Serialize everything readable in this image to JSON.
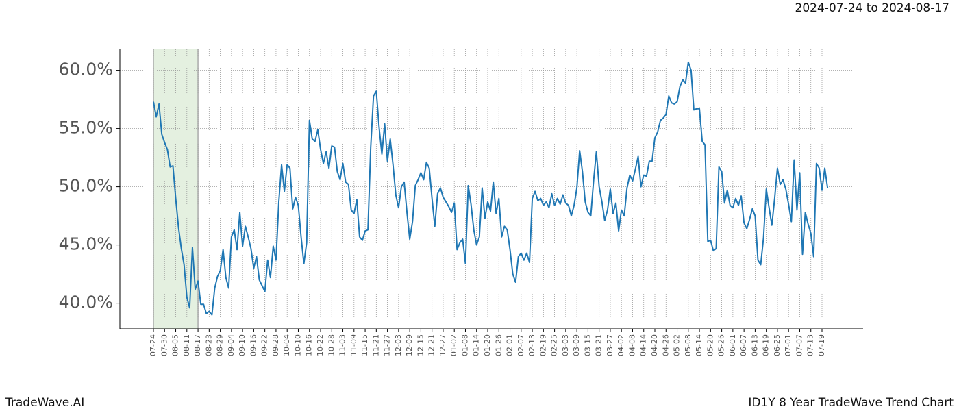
{
  "chart_data": {
    "type": "line",
    "subtitle": "2024-07-24 to 2024-08-17",
    "footer_left": "TradeWave.AI",
    "footer_right": "ID1Y 8 Year TradeWave Trend Chart",
    "color": "#1f77b4",
    "highlight_span": [
      0,
      16
    ],
    "highlight_color": "#d9ead3",
    "grid": true,
    "ylim": [
      37.8,
      61.8
    ],
    "yticks": [
      {
        "value": 40,
        "label": "40.0%"
      },
      {
        "value": 45,
        "label": "45.0%"
      },
      {
        "value": 50,
        "label": "50.0%"
      },
      {
        "value": 55,
        "label": "55.0%"
      },
      {
        "value": 60,
        "label": "60.0%"
      }
    ],
    "categories": [
      "07-24",
      null,
      null,
      null,
      "07-30",
      null,
      null,
      null,
      "08-05",
      null,
      null,
      null,
      "08-11",
      null,
      null,
      null,
      "08-17",
      null,
      null,
      null,
      "08-23",
      null,
      null,
      null,
      "08-29",
      null,
      null,
      null,
      "09-04",
      null,
      null,
      null,
      "09-10",
      null,
      null,
      null,
      "09-16",
      null,
      null,
      null,
      "09-22",
      null,
      null,
      null,
      "09-28",
      null,
      null,
      null,
      "10-04",
      null,
      null,
      null,
      "10-10",
      null,
      null,
      null,
      "10-16",
      null,
      null,
      null,
      "10-22",
      null,
      null,
      null,
      "10-28",
      null,
      null,
      null,
      "11-03",
      null,
      null,
      null,
      "11-09",
      null,
      null,
      null,
      "11-15",
      null,
      null,
      null,
      "11-21",
      null,
      null,
      null,
      "11-27",
      null,
      null,
      null,
      "12-03",
      null,
      null,
      null,
      "12-09",
      null,
      null,
      null,
      "12-15",
      null,
      null,
      null,
      "12-21",
      null,
      null,
      null,
      "12-27",
      null,
      null,
      null,
      "01-02",
      null,
      null,
      null,
      "01-08",
      null,
      null,
      null,
      "01-14",
      null,
      null,
      null,
      "01-20",
      null,
      null,
      null,
      "01-26",
      null,
      null,
      null,
      "02-01",
      null,
      null,
      null,
      "02-07",
      null,
      null,
      null,
      "02-13",
      null,
      null,
      null,
      "02-19",
      null,
      null,
      null,
      "02-25",
      null,
      null,
      null,
      "03-03",
      null,
      null,
      null,
      "03-09",
      null,
      null,
      null,
      "03-15",
      null,
      null,
      null,
      "03-21",
      null,
      null,
      null,
      "03-27",
      null,
      null,
      null,
      "04-02",
      null,
      null,
      null,
      "04-08",
      null,
      null,
      null,
      "04-14",
      null,
      null,
      null,
      "04-20",
      null,
      null,
      null,
      "04-26",
      null,
      null,
      null,
      "05-02",
      null,
      null,
      null,
      "05-08",
      null,
      null,
      null,
      "05-14",
      null,
      null,
      null,
      "05-20",
      null,
      null,
      null,
      "05-26",
      null,
      null,
      null,
      "06-01",
      null,
      null,
      null,
      "06-07",
      null,
      null,
      null,
      "06-13",
      null,
      null,
      null,
      "06-19",
      null,
      null,
      null,
      "06-25",
      null,
      null,
      null,
      "07-01",
      null,
      null,
      null,
      "07-07",
      null,
      null,
      null,
      "07-13",
      null,
      null,
      null,
      "07-19",
      null,
      null
    ],
    "values": [
      57.3,
      56.0,
      57.1,
      54.5,
      53.8,
      53.2,
      51.7,
      51.8,
      49.0,
      46.5,
      44.7,
      43.3,
      40.5,
      39.6,
      44.8,
      41.2,
      41.9,
      39.9,
      39.9,
      39.1,
      39.3,
      39.0,
      41.3,
      42.3,
      42.8,
      44.6,
      42.2,
      41.3,
      45.7,
      46.3,
      44.6,
      47.8,
      44.9,
      46.6,
      45.7,
      44.7,
      43.0,
      44.0,
      42.0,
      41.5,
      41.0,
      43.7,
      42.2,
      44.9,
      43.7,
      48.7,
      51.9,
      49.6,
      51.9,
      51.6,
      48.1,
      49.1,
      48.4,
      45.7,
      43.4,
      45.2,
      55.7,
      54.1,
      53.9,
      54.9,
      53.2,
      52.0,
      53.0,
      51.6,
      53.5,
      53.4,
      51.3,
      50.6,
      52.0,
      50.4,
      50.2,
      48.0,
      47.7,
      48.9,
      45.7,
      45.4,
      46.2,
      46.3,
      53.4,
      57.8,
      58.2,
      55.1,
      52.8,
      55.4,
      52.2,
      54.1,
      51.9,
      49.3,
      48.2,
      50.0,
      50.4,
      47.8,
      45.5,
      47.0,
      50.1,
      50.6,
      51.2,
      50.6,
      52.1,
      51.6,
      49.0,
      46.6,
      49.4,
      49.9,
      49.1,
      48.7,
      48.3,
      47.8,
      48.6,
      44.6,
      45.2,
      45.5,
      43.4,
      50.1,
      48.5,
      46.3,
      45.0,
      45.7,
      49.9,
      47.3,
      48.7,
      47.9,
      50.4,
      47.7,
      49.0,
      45.7,
      46.6,
      46.3,
      44.6,
      42.5,
      41.8,
      44.0,
      44.3,
      43.7,
      44.3,
      43.5,
      49.0,
      49.6,
      48.8,
      49.0,
      48.4,
      48.7,
      48.2,
      49.4,
      48.4,
      49.0,
      48.5,
      49.3,
      48.6,
      48.4,
      47.5,
      48.4,
      49.9,
      53.1,
      51.3,
      48.7,
      47.8,
      47.5,
      50.5,
      53.0,
      50.0,
      48.7,
      47.1,
      48.0,
      49.8,
      47.7,
      48.6,
      46.2,
      48.0,
      47.5,
      49.9,
      51.0,
      50.5,
      51.5,
      52.6,
      50.0,
      51.0,
      50.9,
      52.2,
      52.2,
      54.2,
      54.7,
      55.7,
      55.9,
      56.2,
      57.8,
      57.2,
      57.1,
      57.3,
      58.6,
      59.2,
      58.9,
      60.7,
      60.0,
      56.6,
      56.7,
      56.7,
      53.9,
      53.6,
      45.3,
      45.4,
      44.5,
      44.7,
      51.7,
      51.3,
      48.6,
      49.7,
      48.4,
      48.2,
      49.0,
      48.4,
      49.2,
      46.9,
      46.4,
      47.2,
      48.1,
      47.5,
      43.7,
      43.3,
      45.6,
      49.8,
      48.2,
      46.7,
      49.0,
      51.6,
      50.2,
      50.6,
      49.8,
      48.5,
      47.0,
      52.3,
      48.0,
      51.2,
      44.2,
      47.8,
      46.8,
      46.0,
      44.0,
      52.0,
      51.6,
      49.7,
      51.6,
      49.9
    ]
  }
}
